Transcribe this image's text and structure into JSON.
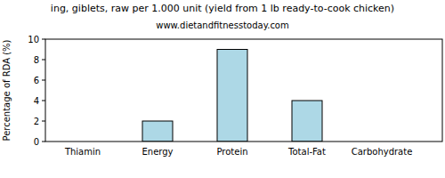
{
  "chart_data": {
    "type": "bar",
    "title": "ing, giblets, raw per 1.000 unit (yield from 1 lb ready-to-cook chicken)",
    "subtitle": "www.dietandfitnesstoday.com",
    "y_label": "Percentage of RDA (%)",
    "categories": [
      "Thiamin",
      "Energy",
      "Protein",
      "Total-Fat",
      "Carbohydrate"
    ],
    "values": [
      0,
      2,
      9,
      4,
      0
    ],
    "color": "#add8e6",
    "ylim": [
      0,
      10
    ],
    "yticks": [
      0,
      2,
      4,
      6,
      8,
      10
    ],
    "grid": false
  }
}
